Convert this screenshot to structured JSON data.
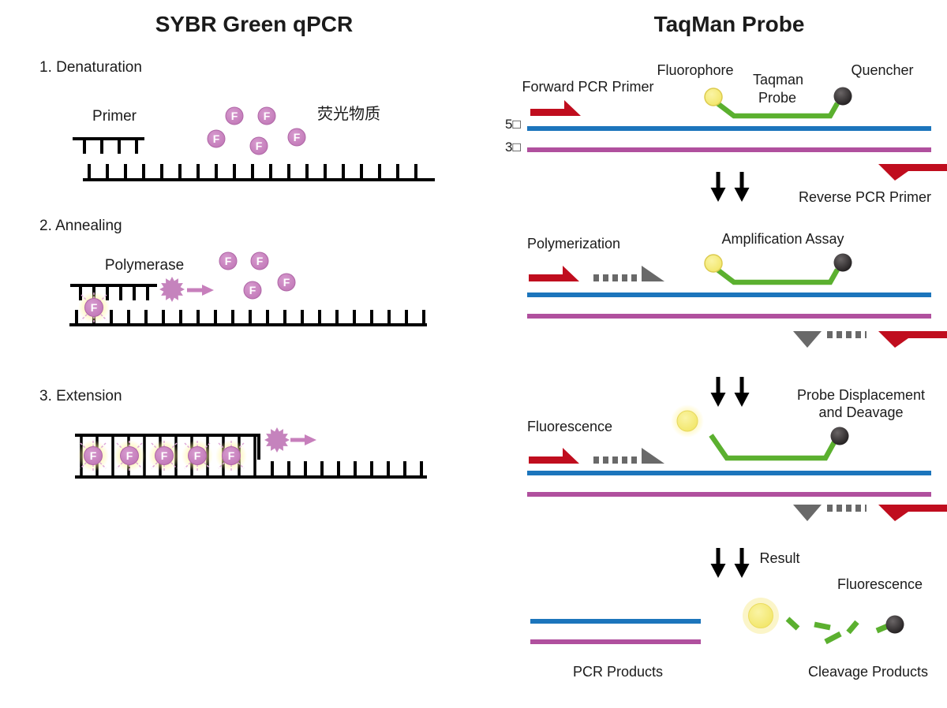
{
  "left_panel": {
    "title": "SYBR Green qPCR",
    "steps": {
      "step1": "1. Denaturation",
      "step2": "2. Annealing",
      "step3": "3. Extension"
    },
    "labels": {
      "primer": "Primer",
      "fluorescent_substance": "荧光物质",
      "polymerase": "Polymerase",
      "fluorophore_letter": "F"
    }
  },
  "right_panel": {
    "title": "TaqMan Probe",
    "labels": {
      "forward_pcr_primer": "Forward PCR Primer",
      "fluorophore": "Fluorophore",
      "taqman_probe_line1": "Taqman",
      "taqman_probe_line2": "Probe",
      "quencher": "Quencher",
      "five_prime": "5□",
      "three_prime": "3□",
      "reverse_pcr_primer": "Reverse PCR Primer",
      "polymerization": "Polymerization",
      "amplification_assay": "Amplification Assay",
      "fluorescence": "Fluorescence",
      "probe_displacement_line1": "Probe Displacement",
      "probe_displacement_line2": "and Deavage",
      "result": "Result",
      "fluorescence_result": "Fluorescence",
      "pcr_products": "PCR Products",
      "cleavage_products": "Cleavage Products"
    }
  },
  "colors": {
    "red": "#C00D1E",
    "blue": "#1C75BC",
    "magenta": "#B0509E",
    "green": "#5BB02F",
    "gray": "#696969",
    "dye_purple": "#C77FBC",
    "fluorophore_yellow": "#F5EE7E",
    "quencher_black": "#2E2A2B",
    "glow_yellow": "#FFF3A0",
    "strand_black": "#000000"
  }
}
